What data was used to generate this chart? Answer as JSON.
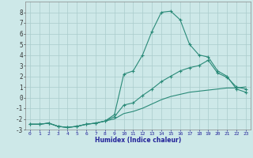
{
  "xlabel": "Humidex (Indice chaleur)",
  "x": [
    0,
    1,
    2,
    3,
    4,
    5,
    6,
    7,
    8,
    9,
    10,
    11,
    12,
    13,
    14,
    15,
    16,
    17,
    18,
    19,
    20,
    21,
    22,
    23
  ],
  "line_max": [
    -2.5,
    -2.5,
    -2.4,
    -2.7,
    -2.8,
    -2.7,
    -2.5,
    -2.4,
    -2.2,
    -1.6,
    2.2,
    2.5,
    4.0,
    6.2,
    8.0,
    8.1,
    7.3,
    5.0,
    4.0,
    3.8,
    2.5,
    2.0,
    0.8,
    0.5
  ],
  "line_mean": [
    -2.5,
    -2.5,
    -2.4,
    -2.7,
    -2.8,
    -2.7,
    -2.5,
    -2.4,
    -2.2,
    -1.8,
    -0.7,
    -0.5,
    0.2,
    0.8,
    1.5,
    2.0,
    2.5,
    2.8,
    3.0,
    3.5,
    2.3,
    1.9,
    1.0,
    0.8
  ],
  "line_min": [
    -2.5,
    -2.5,
    -2.4,
    -2.7,
    -2.8,
    -2.7,
    -2.5,
    -2.4,
    -2.2,
    -2.0,
    -1.5,
    -1.3,
    -1.0,
    -0.6,
    -0.2,
    0.1,
    0.3,
    0.5,
    0.6,
    0.7,
    0.8,
    0.9,
    0.9,
    1.0
  ],
  "line_color": "#2a8a78",
  "bg_color": "#cde8e8",
  "grid_color": "#aacccc",
  "ylim": [
    -3,
    9
  ],
  "xlim": [
    -0.5,
    23.5
  ],
  "yticks": [
    -3,
    -2,
    -1,
    0,
    1,
    2,
    3,
    4,
    5,
    6,
    7,
    8
  ],
  "xticks": [
    0,
    1,
    2,
    3,
    4,
    5,
    6,
    7,
    8,
    9,
    10,
    11,
    12,
    13,
    14,
    15,
    16,
    17,
    18,
    19,
    20,
    21,
    22,
    23
  ]
}
